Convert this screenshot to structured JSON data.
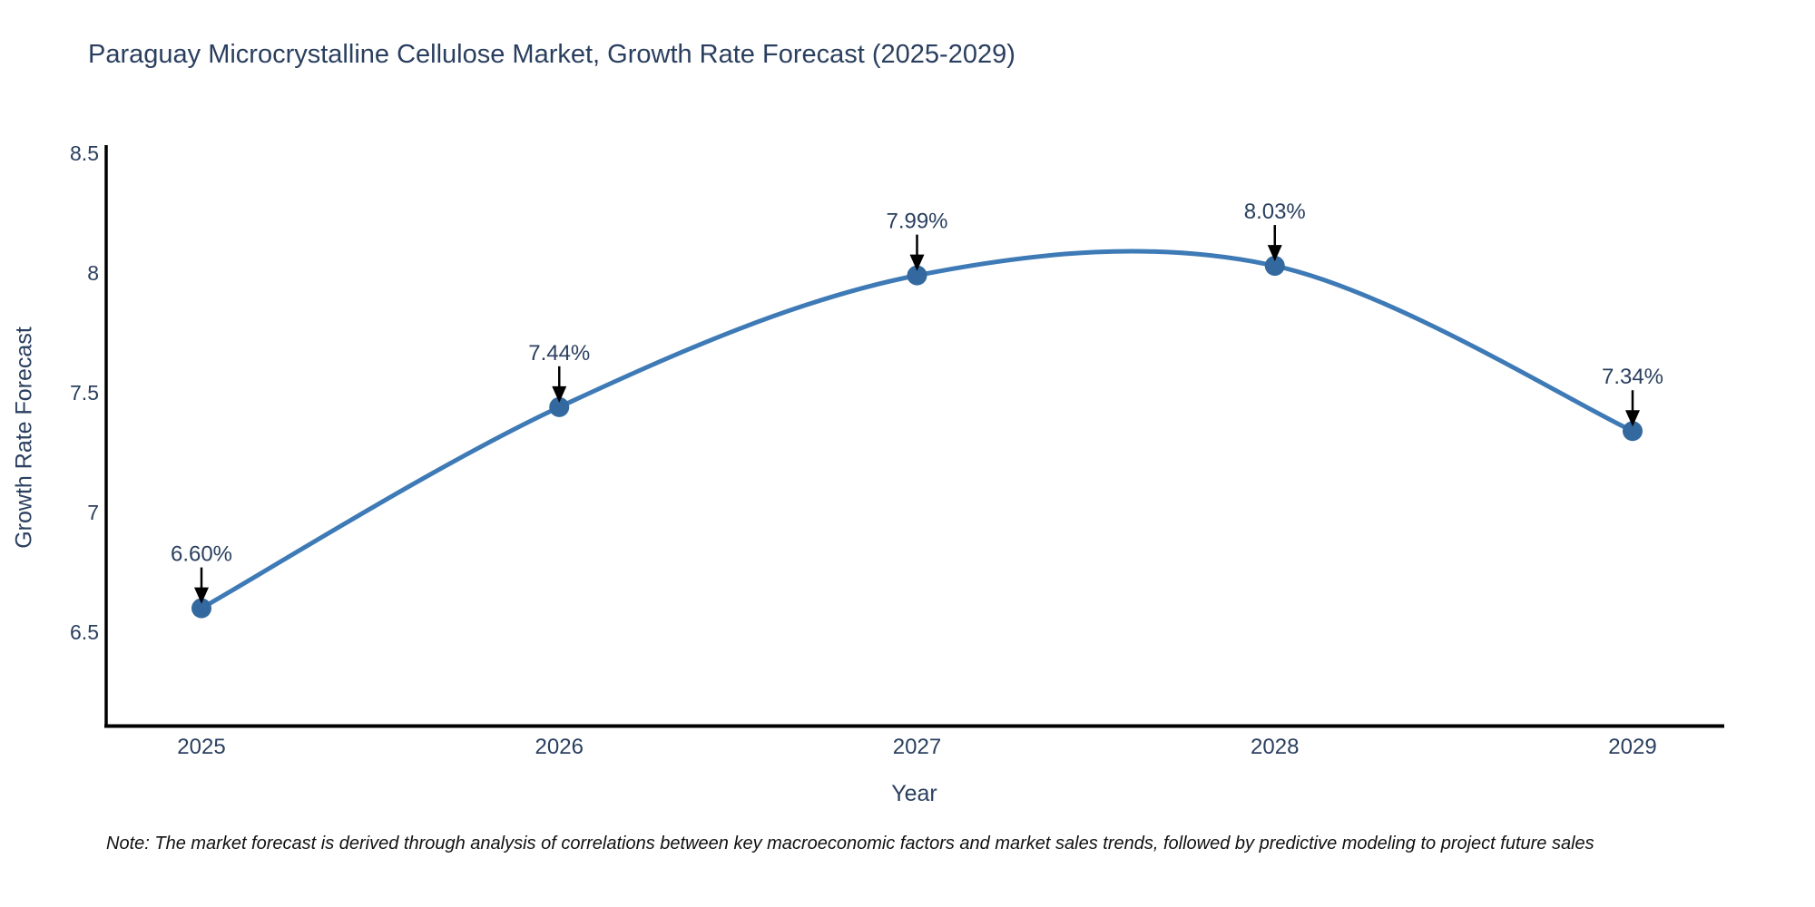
{
  "chart_data": {
    "type": "line",
    "title": "Paraguay Microcrystalline Cellulose Market, Growth Rate Forecast (2025-2029)",
    "xlabel": "Year",
    "ylabel": "Growth Rate Forecast",
    "categories": [
      "2025",
      "2026",
      "2027",
      "2028",
      "2029"
    ],
    "values": [
      6.6,
      7.44,
      7.99,
      8.03,
      7.34
    ],
    "point_labels": [
      "6.60%",
      "7.44%",
      "7.99%",
      "8.03%",
      "7.34%"
    ],
    "yticks": [
      "6.5",
      "7",
      "7.5",
      "8",
      "8.5"
    ],
    "ytick_values": [
      6.5,
      7.0,
      7.5,
      8.0,
      8.5
    ],
    "ylim": [
      6.11,
      8.53
    ],
    "line_shape": "spline",
    "grid": false,
    "legend": "none",
    "colors": {
      "line": "#3e7ab6",
      "marker": "#33699e",
      "text": "#2a3f5f",
      "axis": "#000000",
      "annotation_arrow": "#000000"
    }
  },
  "footnote": "Note: The market forecast is derived through analysis of correlations between key macroeconomic factors and market sales trends, followed by predictive modeling to project future sales"
}
